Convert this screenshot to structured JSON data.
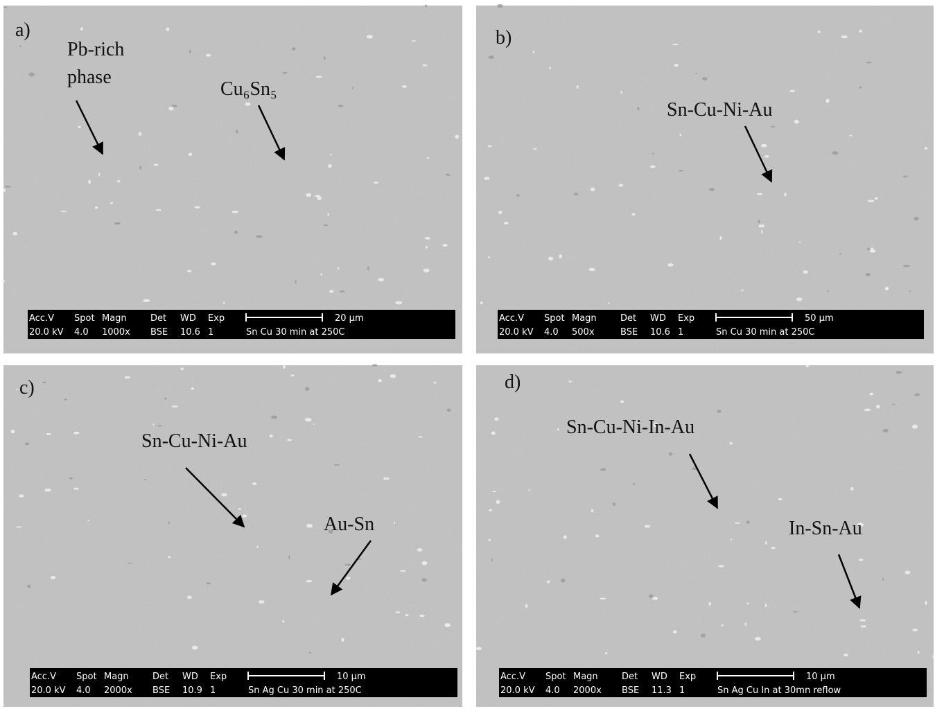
{
  "panels": [
    {
      "label": "a)",
      "annotations": [
        {
          "lines": [
            "Pb-rich",
            "phase"
          ]
        },
        {
          "lines": [
            "Cu₆Sn₅"
          ]
        }
      ],
      "info_bar": {
        "headers": [
          "Acc.V",
          "Spot",
          "Magn",
          "Det",
          "WD",
          "Exp"
        ],
        "values": [
          "20.0 kV",
          "4.0",
          "1000x",
          "BSE",
          "10.6",
          "1"
        ],
        "scale": "20 µm",
        "caption": "Sn Cu 30 min at 250C"
      }
    },
    {
      "label": "b)",
      "annotations": [
        {
          "lines": [
            "Sn-Cu-Ni-Au"
          ]
        }
      ],
      "info_bar": {
        "headers": [
          "Acc.V",
          "Spot",
          "Magn",
          "Det",
          "WD",
          "Exp"
        ],
        "values": [
          "20.0 kV",
          "4.0",
          "500x",
          "BSE",
          "10.6",
          "1"
        ],
        "scale": "50 µm",
        "caption": "Sn Cu 30 min at 250C"
      }
    },
    {
      "label": "c)",
      "annotations": [
        {
          "lines": [
            "Sn-Cu-Ni-Au"
          ]
        },
        {
          "lines": [
            "Au-Sn"
          ]
        }
      ],
      "info_bar": {
        "headers": [
          "Acc.V",
          "Spot",
          "Magn",
          "Det",
          "WD",
          "Exp"
        ],
        "values": [
          "20.0 kV",
          "4.0",
          "2000x",
          "BSE",
          "10.9",
          "1"
        ],
        "scale": "10 µm",
        "caption": "Sn Ag Cu 30 min at 250C"
      }
    },
    {
      "label": "d)",
      "annotations": [
        {
          "lines": [
            "Sn-Cu-Ni-In-Au"
          ]
        },
        {
          "lines": [
            "In-Sn-Au"
          ]
        }
      ],
      "info_bar": {
        "headers": [
          "Acc.V",
          "Spot",
          "Magn",
          "Det",
          "WD",
          "Exp"
        ],
        "values": [
          "20.0 kV",
          "4.0",
          "2000x",
          "BSE",
          "11.3",
          "1"
        ],
        "scale": "10 µm",
        "caption": "Sn Ag Cu In at 30mn reflow"
      }
    }
  ]
}
